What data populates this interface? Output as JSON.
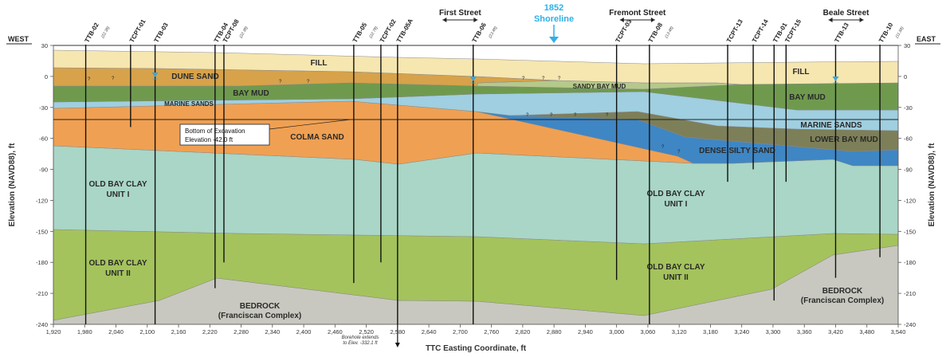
{
  "orientation": {
    "west": "WEST",
    "east": "EAST"
  },
  "streets": [
    {
      "label": "First Street",
      "x_ft": 2700
    },
    {
      "label": "Fremont Street",
      "x_ft": 3040
    },
    {
      "label": "Beale Street",
      "x_ft": 3440
    }
  ],
  "shoreline": {
    "line1": "1852",
    "line2": "Shoreline",
    "x_ft": 2880
  },
  "axes": {
    "x_title": "TTC Easting Coordinate, ft",
    "y_title_left": "Elevation (NAVD88), ft",
    "y_title_right": "Elevation (NAVD88), ft",
    "x_ticks": [
      "1,920",
      "1,980",
      "2,040",
      "2,100",
      "2,160",
      "2,220",
      "2,280",
      "2,340",
      "2,400",
      "2,460",
      "2,520",
      "2,580",
      "2,640",
      "2,700",
      "2,760",
      "2,820",
      "2,880",
      "2,940",
      "3,000",
      "3,060",
      "3,120",
      "3,180",
      "3,240",
      "3,300",
      "3,360",
      "3,420",
      "3,480",
      "3,540"
    ],
    "y_ticks": [
      "30",
      "0",
      "-30",
      "-60",
      "-90",
      "-120",
      "-150",
      "-180",
      "-210",
      "-240"
    ]
  },
  "strata": [
    {
      "id": "fill",
      "lines": [
        "FILL"
      ],
      "color": "#f6e6b0"
    },
    {
      "id": "fill-east",
      "lines": [
        "FILL"
      ],
      "color": "#f6e6b0"
    },
    {
      "id": "dune-sand",
      "lines": [
        "DUNE SAND"
      ],
      "color": "#d7a24a"
    },
    {
      "id": "bay-mud",
      "lines": [
        "BAY MUD"
      ],
      "color": "#6f9a4e"
    },
    {
      "id": "bay-mud-east",
      "lines": [
        "BAY MUD"
      ],
      "color": "#6f9a4e"
    },
    {
      "id": "sandy-bay-mud",
      "lines": [
        "SANDY BAY MUD"
      ],
      "color": "#b5c98a"
    },
    {
      "id": "marine-sands",
      "lines": [
        "MARINE SANDS"
      ],
      "color": "#9fcfe0"
    },
    {
      "id": "marine-sands-east",
      "lines": [
        "MARINE SANDS"
      ],
      "color": "#9fcfe0"
    },
    {
      "id": "colma-sand",
      "lines": [
        "COLMA SAND"
      ],
      "color": "#f0a052"
    },
    {
      "id": "dense-silty-sand",
      "lines": [
        "DENSE SILTY SAND"
      ],
      "color": "#3f86c4"
    },
    {
      "id": "lower-bay-mud",
      "lines": [
        "LOWER BAY MUD"
      ],
      "color": "#7d7f58"
    },
    {
      "id": "old-bay-clay-1-west",
      "lines": [
        "OLD BAY CLAY",
        "UNIT I"
      ],
      "color": "#a9d6c6"
    },
    {
      "id": "old-bay-clay-1-east",
      "lines": [
        "OLD BAY CLAY",
        "UNIT I"
      ],
      "color": "#a9d6c6"
    },
    {
      "id": "old-bay-clay-2-west",
      "lines": [
        "OLD BAY CLAY",
        "UNIT II"
      ],
      "color": "#a4c35c"
    },
    {
      "id": "old-bay-clay-2-east",
      "lines": [
        "OLD BAY CLAY",
        "UNIT II"
      ],
      "color": "#a4c35c"
    },
    {
      "id": "bedrock-west",
      "lines": [
        "BEDROCK",
        "(Franciscan Complex)"
      ],
      "color": "#c8c8c0"
    },
    {
      "id": "bedrock-east",
      "lines": [
        "BEDROCK",
        "(Franciscan Complex)"
      ],
      "color": "#c8c8c0"
    }
  ],
  "excavation": {
    "line1": "Bottom of Excavation",
    "line2": "Elevation -42.0 ft",
    "elev_ft": -42
  },
  "borehole_note": {
    "line1": "Borehole extends",
    "line2": "to Elev. -332.1 ft"
  },
  "borings": [
    {
      "label": "TTB-02",
      "x_ft": 1982,
      "bottom_ft": -240,
      "tag": "(22.3ft)"
    },
    {
      "label": "TCPT-01",
      "x_ft": 2068,
      "bottom_ft": -49
    },
    {
      "label": "TTB-03",
      "x_ft": 2115,
      "bottom_ft": -240
    },
    {
      "label": "TTB-04",
      "x_ft": 2230,
      "bottom_ft": -205
    },
    {
      "label": "TCPT-08",
      "x_ft": 2247,
      "bottom_ft": -180,
      "tag": "(22.3ft)"
    },
    {
      "label": "TTB-05",
      "x_ft": 2496,
      "bottom_ft": -200,
      "tag": "(22.7ft)"
    },
    {
      "label": "TCPT-02",
      "x_ft": 2548,
      "bottom_ft": -180
    },
    {
      "label": "TTB-05A",
      "x_ft": 2580,
      "bottom_ft": -240
    },
    {
      "label": "TTB-06",
      "x_ft": 2725,
      "bottom_ft": -240,
      "tag": "(23.4ft)"
    },
    {
      "label": "TCPT-03",
      "x_ft": 3000,
      "bottom_ft": -197
    },
    {
      "label": "TTB-08",
      "x_ft": 3063,
      "bottom_ft": -240,
      "tag": "(13.4ft)"
    },
    {
      "label": "TCPT-13",
      "x_ft": 3213,
      "bottom_ft": -102
    },
    {
      "label": "TCPT-14",
      "x_ft": 3262,
      "bottom_ft": -90
    },
    {
      "label": "TTB-01",
      "x_ft": 3302,
      "bottom_ft": -217
    },
    {
      "label": "TCPT-15",
      "x_ft": 3325,
      "bottom_ft": -102
    },
    {
      "label": "TTB-13",
      "x_ft": 3420,
      "bottom_ft": -195
    },
    {
      "label": "TTB-10",
      "x_ft": 3505,
      "bottom_ft": -175,
      "tag": "(11.5ft)"
    }
  ],
  "colors": {
    "fill": "#f6e6b0",
    "dune": "#d7a24a",
    "baymud": "#6f9a4e",
    "sandybay": "#b5c98a",
    "marine": "#9fcfe0",
    "colma": "#f0a052",
    "dense": "#3f86c4",
    "lowerbay": "#7d7f58",
    "obc1": "#a9d6c6",
    "obc2": "#a4c35c",
    "bedrock": "#c8c8c0",
    "water": "#3aa6d8",
    "shoreline": "#2fb0e8"
  }
}
